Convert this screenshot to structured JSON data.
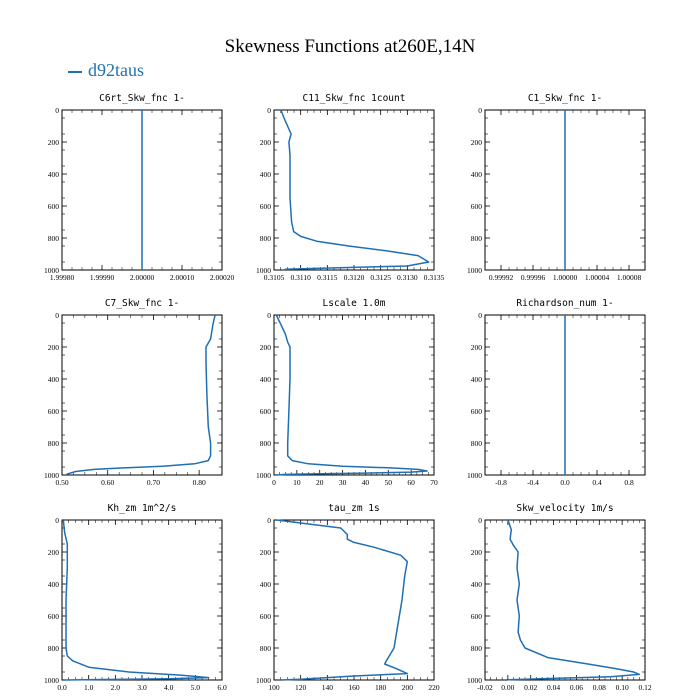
{
  "title": "Skewness Functions at260E,14N",
  "legend": {
    "label": "d92taus",
    "color": "#1f6fb4"
  },
  "chart_data": [
    {
      "type": "line",
      "title": "C6rt_Skw_fnc   1-",
      "xlim": [
        1.9998,
        2.0002
      ],
      "ylim": [
        0,
        1000
      ],
      "xticks": [
        "1.99980",
        "1.99990",
        "2.00000",
        "2.00010",
        "2.00020"
      ],
      "xtick_values": [
        1.9998,
        1.9999,
        2.0,
        2.0001,
        2.0002
      ],
      "yticks": [
        0,
        200,
        400,
        600,
        800,
        1000
      ],
      "series": [
        {
          "x": [
            2.0,
            2.0
          ],
          "y": [
            0,
            1000
          ]
        }
      ]
    },
    {
      "type": "line",
      "title": "C11_Skw_fnc   1count",
      "xlim": [
        0.3105,
        0.3135
      ],
      "ylim": [
        0,
        1000
      ],
      "xticks": [
        "0.3105",
        "0.3110",
        "0.3115",
        "0.3120",
        "0.3125",
        "0.3130",
        "0.3135"
      ],
      "xtick_values": [
        0.3105,
        0.311,
        0.3115,
        0.312,
        0.3125,
        0.313,
        0.3135
      ],
      "yticks": [
        0,
        200,
        400,
        600,
        800,
        1000
      ],
      "series": [
        {
          "x": [
            0.31063,
            0.3107,
            0.31082,
            0.31078,
            0.3108,
            0.3108,
            0.3108,
            0.31083,
            0.31087,
            0.311,
            0.3113,
            0.3119,
            0.3126,
            0.3132,
            0.3134,
            0.313,
            0.3118,
            0.3107
          ],
          "y": [
            0,
            60,
            150,
            200,
            280,
            400,
            550,
            700,
            760,
            790,
            820,
            850,
            880,
            910,
            950,
            975,
            985,
            995
          ]
        }
      ]
    },
    {
      "type": "line",
      "title": "C1_Skw_fnc   1-",
      "xlim": [
        0.9999,
        1.0001
      ],
      "ylim": [
        0,
        1000
      ],
      "xticks": [
        "0.99992",
        "0.99996",
        "1.00000",
        "1.00004",
        "1.00008"
      ],
      "xtick_values": [
        0.99992,
        0.99996,
        1.0,
        1.00004,
        1.00008
      ],
      "yticks": [
        0,
        200,
        400,
        600,
        800,
        1000
      ],
      "series": [
        {
          "x": [
            1.0,
            1.0
          ],
          "y": [
            0,
            1000
          ]
        }
      ]
    },
    {
      "type": "line",
      "title": "C7_Skw_fnc   1-",
      "xlim": [
        0.5,
        0.85
      ],
      "ylim": [
        0,
        1000
      ],
      "xticks": [
        "0.50",
        "0.60",
        "0.70",
        "0.80"
      ],
      "xtick_values": [
        0.5,
        0.6,
        0.7,
        0.8
      ],
      "yticks": [
        0,
        200,
        400,
        600,
        800,
        1000
      ],
      "series": [
        {
          "x": [
            0.835,
            0.83,
            0.825,
            0.815,
            0.815,
            0.817,
            0.82,
            0.825,
            0.825,
            0.82,
            0.79,
            0.72,
            0.64,
            0.57,
            0.53,
            0.51
          ],
          "y": [
            0,
            60,
            150,
            200,
            300,
            500,
            700,
            800,
            880,
            910,
            930,
            945,
            955,
            965,
            978,
            995
          ]
        }
      ]
    },
    {
      "type": "line",
      "title": "Lscale   1.0m",
      "xlim": [
        0,
        70
      ],
      "ylim": [
        0,
        1000
      ],
      "xticks": [
        "0",
        "10",
        "20",
        "30",
        "40",
        "50",
        "60",
        "70"
      ],
      "xtick_values": [
        0,
        10,
        20,
        30,
        40,
        50,
        60,
        70
      ],
      "yticks": [
        0,
        200,
        400,
        600,
        800,
        1000
      ],
      "series": [
        {
          "x": [
            1,
            3,
            5,
            6,
            7,
            7,
            6.5,
            6,
            6,
            8,
            15,
            30,
            50,
            63,
            67,
            60,
            40,
            20,
            5,
            1
          ],
          "y": [
            0,
            60,
            120,
            170,
            200,
            400,
            600,
            800,
            880,
            910,
            930,
            945,
            955,
            965,
            975,
            982,
            988,
            992,
            996,
            1000
          ]
        }
      ]
    },
    {
      "type": "line",
      "title": "Richardson_num   1-",
      "xlim": [
        -1,
        1
      ],
      "ylim": [
        0,
        1000
      ],
      "xticks": [
        "-0.8",
        "-0.4",
        "0.0",
        "0.4",
        "0.8"
      ],
      "xtick_values": [
        -0.8,
        -0.4,
        0.0,
        0.4,
        0.8
      ],
      "yticks": [
        0,
        200,
        400,
        600,
        800,
        1000
      ],
      "series": [
        {
          "x": [
            0,
            0
          ],
          "y": [
            0,
            1000
          ]
        }
      ]
    },
    {
      "type": "line",
      "title": "Kh_zm   1m^2/s",
      "xlim": [
        0,
        6
      ],
      "ylim": [
        0,
        1000
      ],
      "xticks": [
        "0.0",
        "1.0",
        "2.0",
        "3.0",
        "4.0",
        "5.0",
        "6.0"
      ],
      "xtick_values": [
        0,
        1,
        2,
        3,
        4,
        5,
        6
      ],
      "yticks": [
        0,
        200,
        400,
        600,
        800,
        1000
      ],
      "series": [
        {
          "x": [
            0.05,
            0.1,
            0.2,
            0.2,
            0.15,
            0.15,
            0.15,
            0.2,
            0.4,
            1.0,
            2.5,
            4.5,
            5.5,
            4.0,
            1.5,
            0.1
          ],
          "y": [
            0,
            80,
            150,
            300,
            500,
            700,
            800,
            850,
            880,
            920,
            950,
            970,
            985,
            992,
            997,
            1000
          ]
        }
      ]
    },
    {
      "type": "line",
      "title": "tau_zm   1s",
      "xlim": [
        100,
        220
      ],
      "ylim": [
        0,
        1000
      ],
      "xticks": [
        "100",
        "120",
        "140",
        "160",
        "180",
        "200",
        "220"
      ],
      "xtick_values": [
        100,
        120,
        140,
        160,
        180,
        200,
        220
      ],
      "yticks": [
        0,
        200,
        400,
        600,
        800,
        1000
      ],
      "series": [
        {
          "x": [
            102,
            150,
            155,
            155,
            160,
            175,
            195,
            200,
            198,
            196,
            193,
            190,
            185,
            183,
            192,
            200,
            160,
            140,
            120,
            105
          ],
          "y": [
            0,
            50,
            90,
            120,
            140,
            170,
            220,
            260,
            350,
            500,
            650,
            800,
            870,
            900,
            930,
            960,
            975,
            985,
            995,
            1000
          ]
        }
      ]
    },
    {
      "type": "line",
      "title": "Skw_velocity   1m/s",
      "xlim": [
        -0.02,
        0.12
      ],
      "ylim": [
        0,
        1000
      ],
      "xticks": [
        "-0.02",
        "0.00",
        "0.02",
        "0.04",
        "0.06",
        "0.08",
        "0.10",
        "0.12"
      ],
      "xtick_values": [
        -0.02,
        0.0,
        0.02,
        0.04,
        0.06,
        0.08,
        0.1,
        0.12
      ],
      "yticks": [
        0,
        200,
        400,
        600,
        800,
        1000
      ],
      "series": [
        {
          "x": [
            0.0,
            0.003,
            0.002,
            0.005,
            0.009,
            0.008,
            0.01,
            0.008,
            0.01,
            0.009,
            0.011,
            0.015,
            0.035,
            0.07,
            0.095,
            0.11,
            0.115,
            0.09,
            0.04,
            0.0
          ],
          "y": [
            0,
            60,
            120,
            160,
            200,
            300,
            400,
            500,
            600,
            700,
            750,
            800,
            860,
            900,
            930,
            950,
            965,
            980,
            990,
            998
          ]
        }
      ]
    }
  ]
}
